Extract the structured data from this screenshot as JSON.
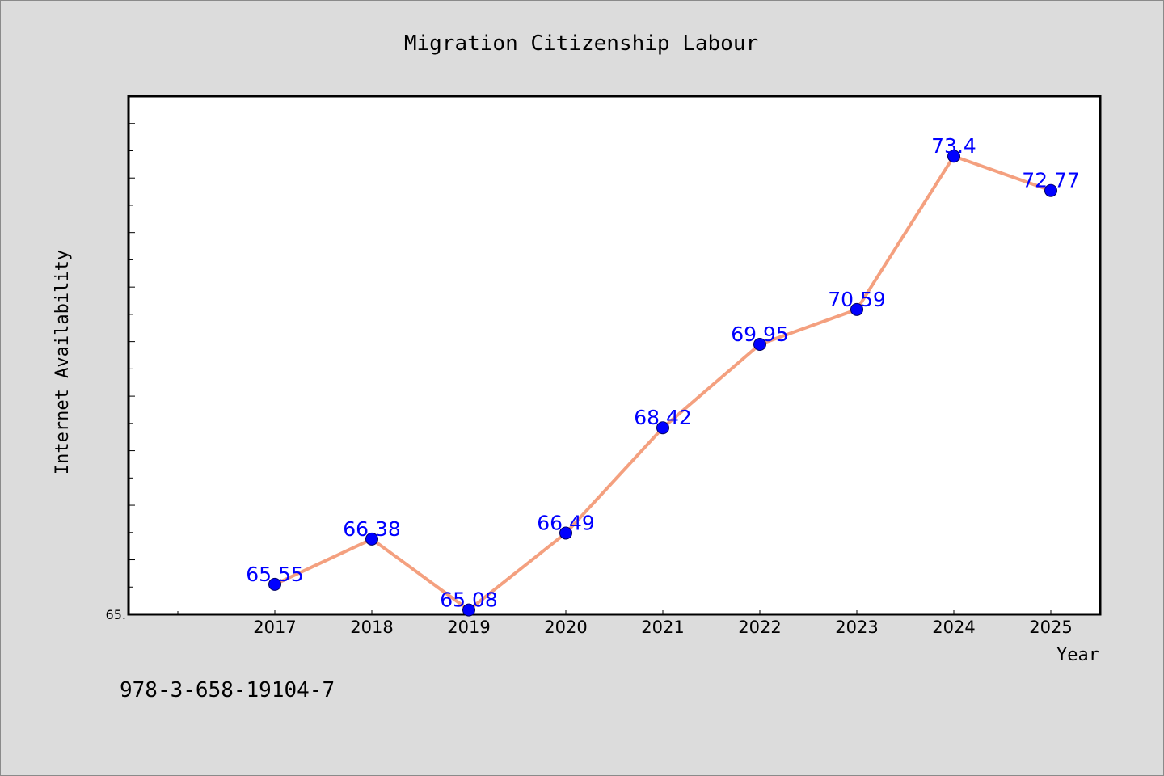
{
  "isbn": "978-3-658-19104-7",
  "colors": {
    "background": "#dcdcdc",
    "plot_background": "#ffffff",
    "line": "#f4a07f",
    "marker": "#0000ff",
    "data_label": "#0000ff",
    "axis": "#000000"
  },
  "chart_data": {
    "type": "line",
    "title": "Migration Citizenship Labour",
    "xlabel": "Year",
    "ylabel": "Internet Availability",
    "categories": [
      "2017",
      "2018",
      "2019",
      "2020",
      "2021",
      "2022",
      "2023",
      "2024",
      "2025"
    ],
    "series": [
      {
        "values": [
          65.55,
          66.38,
          65.08,
          66.49,
          68.42,
          69.95,
          70.59,
          73.4,
          72.77
        ],
        "labels": [
          "65.55",
          "66.38",
          "65.08",
          "66.49",
          "68.42",
          "69.95",
          "70.59",
          "73.4",
          "72.77"
        ]
      }
    ],
    "ylim": [
      65.0,
      74.5
    ],
    "y_tick_labels": [
      "65."
    ],
    "grid": false,
    "legend": "none"
  }
}
